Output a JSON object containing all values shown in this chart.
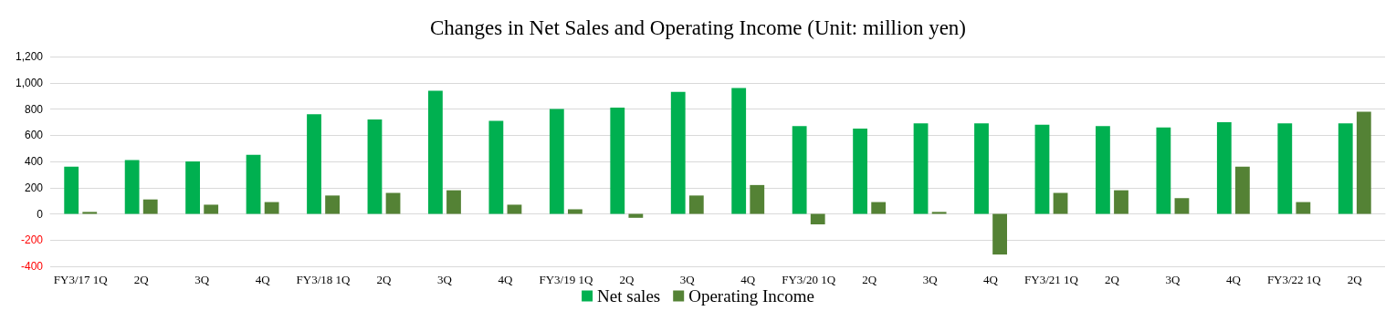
{
  "chart_data": {
    "type": "bar",
    "title": "Changes in Net Sales and Operating Income (Unit: million yen)",
    "categories": [
      "FY3/17 1Q",
      "2Q",
      "3Q",
      "4Q",
      "FY3/18 1Q",
      "2Q",
      "3Q",
      "4Q",
      "FY3/19 1Q",
      "2Q",
      "3Q",
      "4Q",
      "FY3/20 1Q",
      "2Q",
      "3Q",
      "4Q",
      "FY3/21 1Q",
      "2Q",
      "3Q",
      "4Q",
      "FY3/22 1Q",
      "2Q"
    ],
    "series": [
      {
        "name": "Net sales",
        "color": "#00b050",
        "values": [
          360,
          410,
          400,
          450,
          760,
          720,
          940,
          710,
          800,
          810,
          930,
          960,
          670,
          650,
          690,
          690,
          680,
          670,
          660,
          700,
          690,
          690
        ]
      },
      {
        "name": "Operating Income",
        "color": "#548235",
        "values": [
          15,
          110,
          70,
          90,
          140,
          160,
          180,
          70,
          35,
          -30,
          140,
          220,
          -80,
          90,
          15,
          -310,
          160,
          180,
          120,
          360,
          90,
          780
        ]
      }
    ],
    "ylim": [
      -400,
      1200
    ],
    "yticks": [
      -400,
      -200,
      0,
      200,
      400,
      600,
      800,
      {
        "value": 1000,
        "label": "1,000"
      },
      {
        "value": 1200,
        "label": "1,200"
      }
    ],
    "grid": "y",
    "legend": "bottom"
  }
}
